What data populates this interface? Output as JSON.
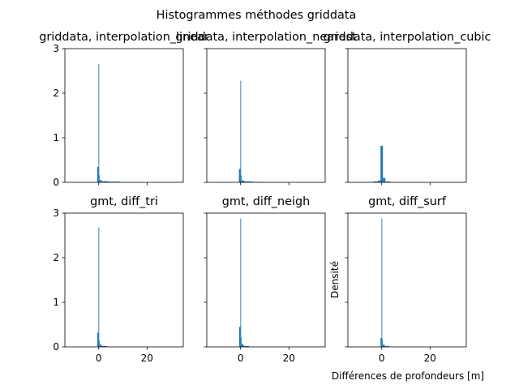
{
  "chart_data": {
    "type": "bar",
    "title": "Histogrammes méthodes griddata",
    "xlabel": "Différences de profondeurs [m]",
    "ylabel": "Densité",
    "xlim": [
      -14,
      35
    ],
    "ylim": [
      0,
      3
    ],
    "xticks": [
      0,
      20
    ],
    "yticks": [
      0,
      1,
      2,
      3
    ],
    "bar_color": "#1f77b4",
    "sharex": true,
    "sharey": true,
    "panels": [
      {
        "title": "griddata, interpolation_linear",
        "bins": [
          {
            "x0": -0.6,
            "x1": -0.1,
            "v": 0.35
          },
          {
            "x0": -0.1,
            "x1": 0.1,
            "v": 2.65
          },
          {
            "x0": 0.1,
            "x1": 0.4,
            "v": 0.16
          },
          {
            "x0": 0.4,
            "x1": 1.2,
            "v": 0.05
          },
          {
            "x0": 1.2,
            "x1": 4.0,
            "v": 0.025
          },
          {
            "x0": 4.0,
            "x1": 9.0,
            "v": 0.015
          }
        ]
      },
      {
        "title": "griddata, interpolation_nearest",
        "bins": [
          {
            "x0": -0.7,
            "x1": -0.1,
            "v": 0.3
          },
          {
            "x0": -0.1,
            "x1": 0.1,
            "v": 2.28
          },
          {
            "x0": 0.1,
            "x1": 0.4,
            "v": 0.15
          },
          {
            "x0": 0.4,
            "x1": 1.5,
            "v": 0.04
          },
          {
            "x0": 1.5,
            "x1": 5.0,
            "v": 0.02
          },
          {
            "x0": 5.0,
            "x1": 9.5,
            "v": 0.01
          }
        ]
      },
      {
        "title": "griddata, interpolation_cubic",
        "bins": [
          {
            "x0": -3.5,
            "x1": -1.5,
            "v": 0.02
          },
          {
            "x0": -1.5,
            "x1": -0.5,
            "v": 0.04
          },
          {
            "x0": -0.5,
            "x1": 0.5,
            "v": 0.82
          },
          {
            "x0": 0.5,
            "x1": 1.5,
            "v": 0.1
          },
          {
            "x0": 1.5,
            "x1": 3.5,
            "v": 0.02
          }
        ]
      },
      {
        "title": "gmt, diff_tri",
        "bins": [
          {
            "x0": -0.6,
            "x1": -0.1,
            "v": 0.32
          },
          {
            "x0": -0.1,
            "x1": 0.1,
            "v": 2.68
          },
          {
            "x0": 0.1,
            "x1": 0.4,
            "v": 0.14
          },
          {
            "x0": 0.4,
            "x1": 1.2,
            "v": 0.05
          },
          {
            "x0": 1.2,
            "x1": 3.5,
            "v": 0.02
          }
        ]
      },
      {
        "title": "gmt, diff_neigh",
        "bins": [
          {
            "x0": -0.6,
            "x1": -0.1,
            "v": 0.45
          },
          {
            "x0": -0.1,
            "x1": 0.1,
            "v": 2.88
          },
          {
            "x0": 0.1,
            "x1": 0.4,
            "v": 0.2
          },
          {
            "x0": 0.4,
            "x1": 1.2,
            "v": 0.06
          },
          {
            "x0": 1.2,
            "x1": 3.5,
            "v": 0.02
          }
        ]
      },
      {
        "title": "gmt, diff_surf",
        "bins": [
          {
            "x0": -0.5,
            "x1": -0.1,
            "v": 0.2
          },
          {
            "x0": -0.1,
            "x1": 0.1,
            "v": 2.88
          },
          {
            "x0": 0.1,
            "x1": 0.4,
            "v": 0.18
          },
          {
            "x0": 0.4,
            "x1": 1.2,
            "v": 0.05
          },
          {
            "x0": 1.2,
            "x1": 3.0,
            "v": 0.02
          }
        ]
      }
    ]
  }
}
